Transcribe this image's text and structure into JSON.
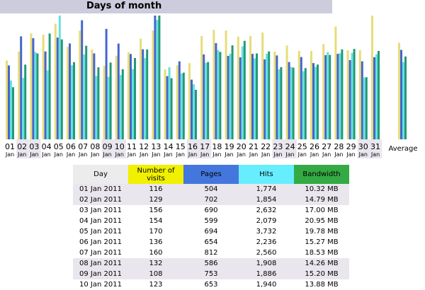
{
  "title": "Days of month",
  "chart_data": {
    "type": "bar",
    "series": [
      {
        "name": "Number of visits",
        "color": "#e8dc7a",
        "values": [
          116,
          129,
          156,
          154,
          170,
          136,
          160,
          132,
          108,
          123,
          128,
          148,
          160,
          103,
          109,
          112,
          152,
          161,
          160,
          151,
          152,
          157,
          129,
          138,
          130,
          130,
          140,
          166,
          131,
          131,
          182
        ]
      },
      {
        "name": "Pages",
        "color": "#4466cc",
        "values": [
          504,
          702,
          690,
          599,
          694,
          654,
          812,
          586,
          753,
          653,
          582,
          614,
          844,
          431,
          532,
          407,
          579,
          656,
          569,
          559,
          583,
          545,
          572,
          527,
          561,
          520,
          574,
          583,
          540,
          532,
          560
        ]
      },
      {
        "name": "Hits",
        "color": "#66e0e0",
        "values": [
          1774,
          1854,
          2632,
          2079,
          3732,
          2236,
          2560,
          1908,
          1886,
          1940,
          2120,
          2451,
          3600,
          2172,
          1984,
          1660,
          2307,
          2694,
          2580,
          2802,
          2440,
          2581,
          2113,
          2180,
          2053,
          2185,
          2630,
          2597,
          2611,
          1864,
          2562
        ]
      },
      {
        "name": "Bandwidth",
        "color": "#229977",
        "values": [
          10.32,
          14.79,
          17.0,
          20.95,
          19.78,
          15.27,
          18.53,
          14.26,
          15.2,
          13.88,
          16.1,
          17.8,
          24.5,
          12.1,
          13.2,
          9.8,
          15.3,
          17.3,
          18.6,
          19.5,
          17.0,
          17.4,
          14.3,
          14.2,
          14.1,
          14.8,
          16.7,
          17.8,
          17.9,
          12.3,
          17.5
        ]
      }
    ],
    "average": {
      "visits": 142,
      "pages": 610,
      "hits": 2330,
      "bandwidth": 16.4
    },
    "ticks": [
      {
        "top": "01",
        "bottom": "Jan"
      },
      {
        "top": "02",
        "bottom": "Jan"
      },
      {
        "top": "03",
        "bottom": "Jan"
      },
      {
        "top": "04",
        "bottom": "Jan"
      },
      {
        "top": "05",
        "bottom": "Jan"
      },
      {
        "top": "06",
        "bottom": "Jan"
      },
      {
        "top": "07",
        "bottom": "Jan"
      },
      {
        "top": "08",
        "bottom": "Jan"
      },
      {
        "top": "09",
        "bottom": "Jan"
      },
      {
        "top": "10",
        "bottom": "Jan"
      },
      {
        "top": "11",
        "bottom": "Jan"
      },
      {
        "top": "12",
        "bottom": "Jan"
      },
      {
        "top": "13",
        "bottom": "Jan"
      },
      {
        "top": "14",
        "bottom": "Jan"
      },
      {
        "top": "15",
        "bottom": "Jan"
      },
      {
        "top": "16",
        "bottom": "Jan"
      },
      {
        "top": "17",
        "bottom": "Jan"
      },
      {
        "top": "18",
        "bottom": "Jan"
      },
      {
        "top": "19",
        "bottom": "Jan"
      },
      {
        "top": "20",
        "bottom": "Jan"
      },
      {
        "top": "21",
        "bottom": "Jan"
      },
      {
        "top": "22",
        "bottom": "Jan"
      },
      {
        "top": "23",
        "bottom": "Jan"
      },
      {
        "top": "24",
        "bottom": "Jan"
      },
      {
        "top": "25",
        "bottom": "Jan"
      },
      {
        "top": "26",
        "bottom": "Jan"
      },
      {
        "top": "27",
        "bottom": "Jan"
      },
      {
        "top": "28",
        "bottom": "Jan"
      },
      {
        "top": "29",
        "bottom": "Jan"
      },
      {
        "top": "30",
        "bottom": "Jan"
      },
      {
        "top": "31",
        "bottom": "Jan"
      }
    ],
    "average_label": "Average",
    "weekend_columns": [
      1,
      2,
      8,
      9,
      15,
      16,
      22,
      23,
      29,
      30
    ]
  },
  "table": {
    "headers": {
      "day": "Day",
      "visits": "Number of visits",
      "pages": "Pages",
      "hits": "Hits",
      "bandwidth": "Bandwidth"
    },
    "rows": [
      {
        "day": "01 Jan 2011",
        "visits": "116",
        "pages": "504",
        "hits": "1,774",
        "bandwidth": "10.32 MB",
        "weekend": true
      },
      {
        "day": "02 Jan 2011",
        "visits": "129",
        "pages": "702",
        "hits": "1,854",
        "bandwidth": "14.79 MB",
        "weekend": true
      },
      {
        "day": "03 Jan 2011",
        "visits": "156",
        "pages": "690",
        "hits": "2,632",
        "bandwidth": "17.00 MB",
        "weekend": false
      },
      {
        "day": "04 Jan 2011",
        "visits": "154",
        "pages": "599",
        "hits": "2,079",
        "bandwidth": "20.95 MB",
        "weekend": false
      },
      {
        "day": "05 Jan 2011",
        "visits": "170",
        "pages": "694",
        "hits": "3,732",
        "bandwidth": "19.78 MB",
        "weekend": false
      },
      {
        "day": "06 Jan 2011",
        "visits": "136",
        "pages": "654",
        "hits": "2,236",
        "bandwidth": "15.27 MB",
        "weekend": false
      },
      {
        "day": "07 Jan 2011",
        "visits": "160",
        "pages": "812",
        "hits": "2,560",
        "bandwidth": "18.53 MB",
        "weekend": false
      },
      {
        "day": "08 Jan 2011",
        "visits": "132",
        "pages": "586",
        "hits": "1,908",
        "bandwidth": "14.26 MB",
        "weekend": true
      },
      {
        "day": "09 Jan 2011",
        "visits": "108",
        "pages": "753",
        "hits": "1,886",
        "bandwidth": "15.20 MB",
        "weekend": true
      },
      {
        "day": "10 Jan 2011",
        "visits": "123",
        "pages": "653",
        "hits": "1,940",
        "bandwidth": "13.88 MB",
        "weekend": false
      }
    ]
  }
}
